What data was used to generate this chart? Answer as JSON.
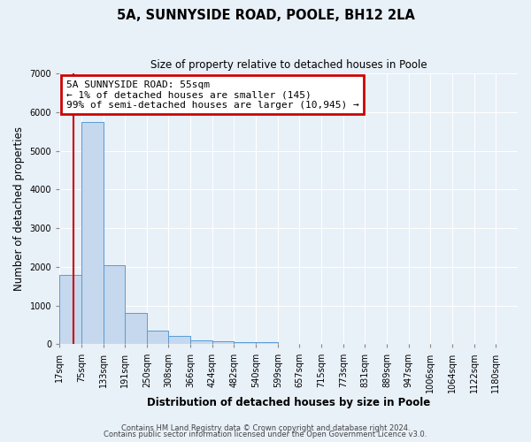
{
  "title": "5A, SUNNYSIDE ROAD, POOLE, BH12 2LA",
  "subtitle": "Size of property relative to detached houses in Poole",
  "xlabel": "Distribution of detached houses by size in Poole",
  "ylabel": "Number of detached properties",
  "bar_values": [
    1800,
    5750,
    2050,
    820,
    360,
    220,
    95,
    85,
    60,
    50,
    0,
    0,
    0,
    0,
    0,
    0,
    0,
    0,
    0,
    0
  ],
  "bar_labels": [
    "17sqm",
    "75sqm",
    "133sqm",
    "191sqm",
    "250sqm",
    "308sqm",
    "366sqm",
    "424sqm",
    "482sqm",
    "540sqm",
    "599sqm",
    "657sqm",
    "715sqm",
    "773sqm",
    "831sqm",
    "889sqm",
    "947sqm",
    "1006sqm",
    "1064sqm",
    "1122sqm",
    "1180sqm"
  ],
  "bar_color": "#c5d8ed",
  "bar_edge_color": "#5b9bd5",
  "ylim": [
    0,
    7000
  ],
  "yticks": [
    0,
    1000,
    2000,
    3000,
    4000,
    5000,
    6000,
    7000
  ],
  "property_line_color": "#cc0000",
  "annotation_box_edgecolor": "#cc0000",
  "annotation_title": "5A SUNNYSIDE ROAD: 55sqm",
  "annotation_line1": "← 1% of detached houses are smaller (145)",
  "annotation_line2": "99% of semi-detached houses are larger (10,945) →",
  "footer1": "Contains HM Land Registry data © Crown copyright and database right 2024.",
  "footer2": "Contains public sector information licensed under the Open Government Licence v3.0.",
  "background_color": "#e8f0f8",
  "plot_bg_color": "#e8f0f8",
  "grid_color": "#ffffff",
  "title_fontsize": 10.5,
  "subtitle_fontsize": 8.5,
  "axis_label_fontsize": 8.5,
  "tick_fontsize": 7,
  "footer_fontsize": 6,
  "annotation_fontsize": 8
}
